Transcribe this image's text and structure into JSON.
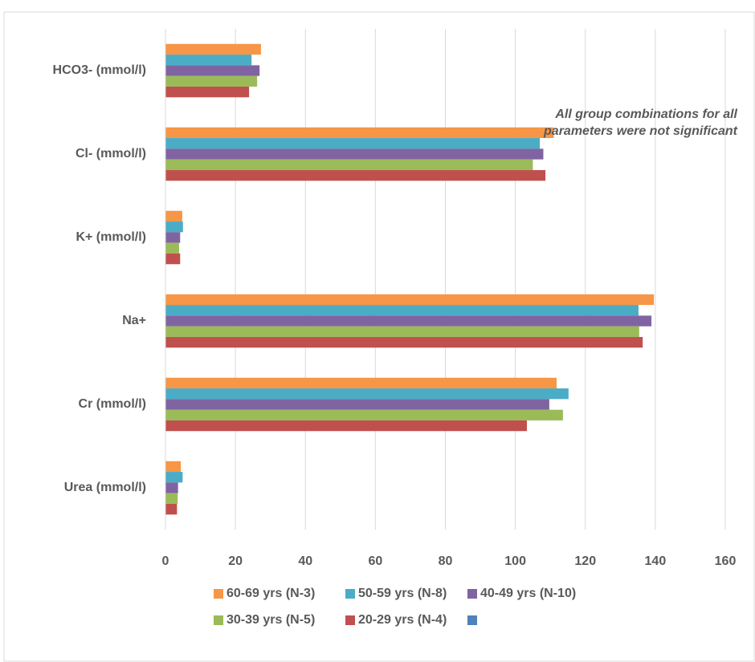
{
  "chart_data": {
    "type": "hbar",
    "annotation": "All group combinations for all parameters were not significant",
    "categories": [
      "Urea (mmol/l)",
      "Cr (mmol/l)",
      "Na+",
      "K+ (mmol/l)",
      "Cl- (mmol/l)",
      "HCO3- (mmol/l)"
    ],
    "series": [
      {
        "name": "60-69 yrs (N-3)",
        "color": "#f79646",
        "values": [
          4.4,
          111.8,
          139.6,
          4.8,
          111,
          27.3
        ]
      },
      {
        "name": "50-59 yrs (N-8)",
        "color": "#4bacc6",
        "values": [
          4.9,
          115.2,
          135.2,
          5.0,
          107,
          24.6
        ]
      },
      {
        "name": "40-49 yrs (N-10)",
        "color": "#8064a2",
        "values": [
          3.6,
          109.7,
          138.9,
          4.2,
          108,
          26.9
        ]
      },
      {
        "name": "30-39 yrs (N-5)",
        "color": "#9bbb59",
        "values": [
          3.5,
          113.6,
          135.4,
          3.9,
          105,
          26.2
        ]
      },
      {
        "name": "20-29 yrs (N-4)",
        "color": "#c0504d",
        "values": [
          3.3,
          103.3,
          136.4,
          4.2,
          108.6,
          23.9
        ]
      },
      {
        "name": null,
        "color": "#4f81bd",
        "values": [
          null,
          null,
          null,
          null,
          null,
          null
        ]
      }
    ],
    "xlim": [
      0,
      160
    ],
    "xticks": [
      0,
      20,
      40,
      60,
      80,
      100,
      120,
      140,
      160
    ],
    "grid": true
  }
}
